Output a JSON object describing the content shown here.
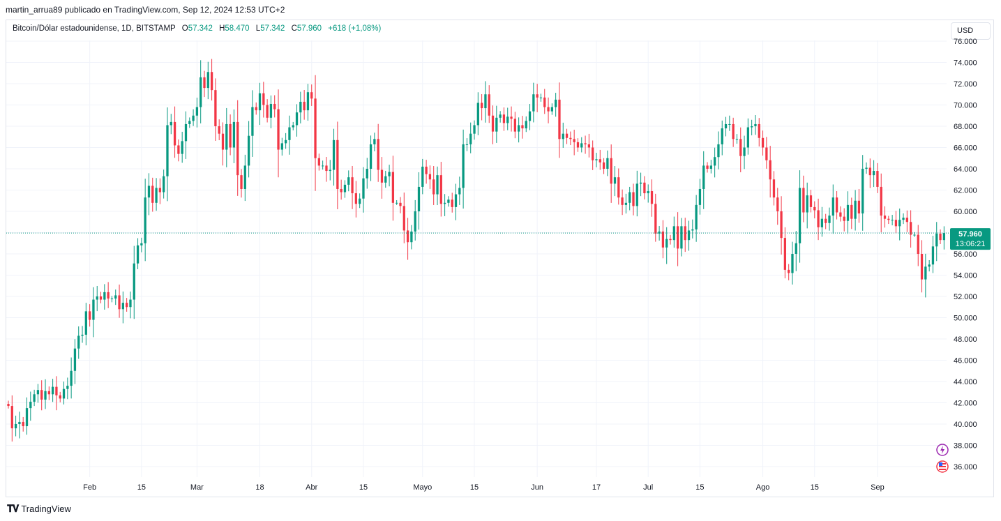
{
  "publisher_line": "martin_arrua89 publicado en TradingView.com, Sep 12, 2024 12:53 UTC+2",
  "legend": {
    "symbol": "Bitcoin/Dólar estadounidense, 1D, BITSTAMP",
    "o_label": "O",
    "o_value": "57.342",
    "h_label": "H",
    "h_value": "58.470",
    "l_label": "L",
    "l_value": "57.342",
    "c_label": "C",
    "c_value": "57.960",
    "change": "+618 (+1,08%)"
  },
  "currency_button": "USD",
  "price_badge": {
    "price": "57.960",
    "countdown": "13:06:21"
  },
  "brand": "TradingView",
  "colors": {
    "up": "#089981",
    "down": "#f23645",
    "grid": "#f0f3fa",
    "text": "#131722"
  },
  "icons": [
    "lightning-icon",
    "us-flag-icon"
  ],
  "chart_data": {
    "type": "candlestick",
    "title": "",
    "xlabel": "",
    "ylabel": "",
    "ylim": [
      35000,
      76000
    ],
    "y_ticks": [
      36000,
      38000,
      40000,
      42000,
      44000,
      46000,
      48000,
      50000,
      52000,
      54000,
      56000,
      58000,
      60000,
      62000,
      64000,
      66000,
      68000,
      70000,
      72000,
      74000,
      76000
    ],
    "y_tick_labels": [
      "36.000",
      "38.000",
      "40.000",
      "42.000",
      "44.000",
      "46.000",
      "48.000",
      "50.000",
      "52.000",
      "54.000",
      "56.000",
      "58.000",
      "60.000",
      "62.000",
      "64.000",
      "66.000",
      "68.000",
      "70.000",
      "72.000",
      "74.000",
      "76.000"
    ],
    "x_tick_labels": [
      {
        "label": "Feb",
        "index": 22
      },
      {
        "label": "15",
        "index": 36
      },
      {
        "label": "Mar",
        "index": 51
      },
      {
        "label": "18",
        "index": 68
      },
      {
        "label": "Abr",
        "index": 82
      },
      {
        "label": "15",
        "index": 96
      },
      {
        "label": "Mayo",
        "index": 112
      },
      {
        "label": "15",
        "index": 126
      },
      {
        "label": "Jun",
        "index": 143
      },
      {
        "label": "17",
        "index": 159
      },
      {
        "label": "Jul",
        "index": 173
      },
      {
        "label": "15",
        "index": 187
      },
      {
        "label": "Ago",
        "index": 204
      },
      {
        "label": "15",
        "index": 218
      },
      {
        "label": "Sep",
        "index": 235
      }
    ],
    "last_price": 57960,
    "closes": [
      41700,
      39600,
      40000,
      40200,
      39800,
      41500,
      42100,
      42800,
      43200,
      42300,
      43100,
      42800,
      43500,
      42700,
      42400,
      43300,
      43600,
      45000,
      47100,
      48300,
      48400,
      50600,
      49800,
      51700,
      52000,
      51700,
      52400,
      51800,
      51800,
      52100,
      50800,
      51400,
      51000,
      51700,
      55100,
      56800,
      57000,
      61300,
      62400,
      60800,
      62200,
      61800,
      63300,
      68100,
      68400,
      66200,
      65400,
      66600,
      68200,
      68500,
      69000,
      69800,
      72600,
      71600,
      73100,
      71400,
      68000,
      67300,
      65800,
      68200,
      66000,
      68400,
      63400,
      62100,
      64300,
      67100,
      69800,
      69500,
      71100,
      70000,
      68800,
      70100,
      69600,
      65800,
      66400,
      66700,
      67900,
      68100,
      69300,
      70300,
      69500,
      71200,
      70600,
      65000,
      64300,
      64300,
      63800,
      63900,
      66700,
      62100,
      61800,
      62500,
      63200,
      61700,
      60700,
      61200,
      63100,
      64000,
      66300,
      66800,
      63900,
      62700,
      63300,
      63700,
      60800,
      60800,
      60500,
      58200,
      57100,
      58100,
      60000,
      62300,
      64200,
      63500,
      63000,
      61600,
      63400,
      60700,
      60800,
      61100,
      60400,
      61600,
      62200,
      66300,
      66300,
      67300,
      68100,
      70200,
      69700,
      71000,
      69000,
      67500,
      68800,
      69100,
      68300,
      68900,
      68700,
      67500,
      68100,
      67800,
      68500,
      69400,
      71000,
      70700,
      70700,
      69800,
      69400,
      69800,
      70500,
      66800,
      67300,
      66900,
      66800,
      66500,
      66000,
      66400,
      66300,
      66000,
      64800,
      64900,
      64600,
      64000,
      65000,
      62600,
      63200,
      61300,
      60600,
      60800,
      61800,
      60500,
      62600,
      62700,
      61700,
      61900,
      60700,
      57900,
      58100,
      56600,
      57400,
      57300,
      58600,
      56500,
      58600,
      57300,
      58200,
      58300,
      60600,
      62100,
      64300,
      64000,
      64300,
      65100,
      66300,
      67800,
      68200,
      68200,
      66800,
      66800,
      65200,
      66000,
      67900,
      68000,
      68200,
      66900,
      66000,
      64800,
      63000,
      61300,
      60000,
      57500,
      54500,
      54200,
      56000,
      57000,
      62200,
      59900,
      61500,
      60400,
      60100,
      58500,
      59300,
      58900,
      59600,
      61300,
      59900,
      59500,
      59100,
      60600,
      59300,
      61000,
      59800,
      64000,
      64100,
      63400,
      63800,
      62300,
      59600,
      59300,
      59200,
      59200,
      58600,
      59200,
      59400,
      59000,
      57800,
      57800,
      56000,
      53600,
      54800,
      55000,
      56700,
      57900,
      57300,
      57960
    ]
  }
}
